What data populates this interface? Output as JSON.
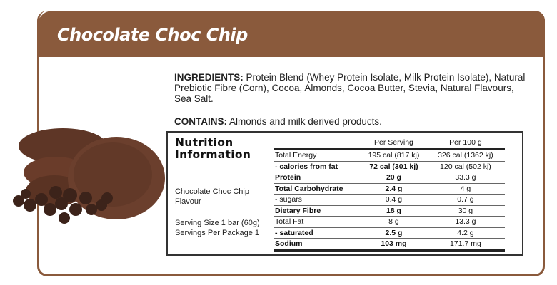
{
  "header": {
    "title": "Chocolate Choc Chip"
  },
  "ingredients": {
    "label": "INGREDIENTS:",
    "text": " Protein Blend (Whey Protein Isolate, Milk Protein Isolate), Natural Prebiotic Fibre (Corn), Cocoa, Almonds, Cocoa Butter, Stevia, Natural Flavours, Sea Salt."
  },
  "contains": {
    "label": "CONTAINS:",
    "text": " Almonds and milk derived products."
  },
  "image": {
    "icon": "chocolate-cookies-image"
  },
  "nutrition": {
    "title_line1": "Nutrition",
    "title_line2": "Information",
    "flavour_line1": "Chocolate Choc Chip",
    "flavour_line2": "Flavour",
    "serving_size": "Serving Size 1 bar (60g)",
    "servings_per_package": "Servings Per Package 1",
    "columns": [
      "",
      "Per Serving",
      "Per 100 g"
    ],
    "rows": [
      {
        "label": "Total Energy",
        "per_serving": "195 cal (817 kj)",
        "per_100g": "326 cal (1362 kj)",
        "bold": false
      },
      {
        "label": "- calories from fat",
        "per_serving": "72 cal (301 kj)",
        "per_100g": "120 cal (502 kj)",
        "bold": true
      },
      {
        "label": "Protein",
        "per_serving": "20 g",
        "per_100g": "33.3 g",
        "bold": true
      },
      {
        "label": "Total Carbohydrate",
        "per_serving": "2.4 g",
        "per_100g": "4 g",
        "bold": true
      },
      {
        "label": "- sugars",
        "per_serving": "0.4 g",
        "per_100g": "0.7 g",
        "bold": false
      },
      {
        "label": "Dietary Fibre",
        "per_serving": "18 g",
        "per_100g": "30 g",
        "bold": true
      },
      {
        "label": "Total Fat",
        "per_serving": "8 g",
        "per_100g": "13.3 g",
        "bold": false
      },
      {
        "label": "- saturated",
        "per_serving": "2.5 g",
        "per_100g": "4.2 g",
        "bold": true
      },
      {
        "label": "Sodium",
        "per_serving": "103 mg",
        "per_100g": "171.7 mg",
        "bold": true
      }
    ]
  },
  "colors": {
    "brand": "#8a5a3c"
  }
}
